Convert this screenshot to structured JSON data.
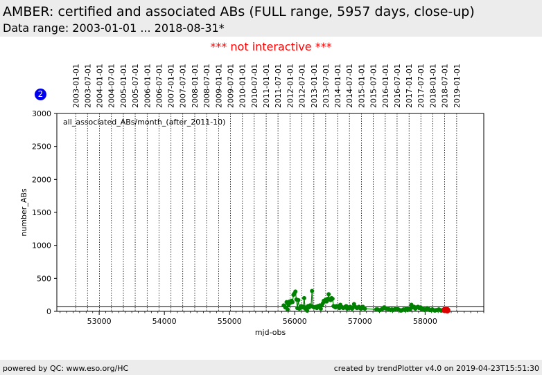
{
  "header": {
    "title": "AMBER: certified and associated ABs (FULL range, 5957 days, close-up)",
    "subtitle": "Data range: 2003-01-01 ... 2018-08-31*"
  },
  "notice": "*** not interactive ***",
  "badge": "2",
  "footer": {
    "left": "powered by QC: www.eso.org/HC",
    "right": "created by trendPlotter v4.0 on 2019-04-23T15:51:30"
  },
  "colors": {
    "series": "#008000",
    "highlight": "#dd0000",
    "notice": "#ff0000",
    "badge": "#0000ee"
  },
  "chart_data": {
    "type": "scatter",
    "xlabel": "mjd-obs",
    "ylabel": "number_ABs",
    "annotation": "all_associated_ABs/month_(after_2011-10)",
    "xlim": [
      52350,
      58900
    ],
    "ylim": [
      0,
      3000
    ],
    "x_ticks": [
      53000,
      54000,
      55000,
      56000,
      57000,
      58000
    ],
    "y_ticks": [
      0,
      500,
      1000,
      1500,
      2000,
      2500,
      3000
    ],
    "date_ticks": [
      {
        "label": "2003-01-01",
        "mjd": 52640
      },
      {
        "label": "2003-07-01",
        "mjd": 52821
      },
      {
        "label": "2004-01-01",
        "mjd": 53005
      },
      {
        "label": "2004-07-01",
        "mjd": 53187
      },
      {
        "label": "2005-01-01",
        "mjd": 53371
      },
      {
        "label": "2005-07-01",
        "mjd": 53552
      },
      {
        "label": "2006-01-01",
        "mjd": 53736
      },
      {
        "label": "2006-07-01",
        "mjd": 53917
      },
      {
        "label": "2007-01-01",
        "mjd": 54101
      },
      {
        "label": "2007-07-01",
        "mjd": 54282
      },
      {
        "label": "2008-01-01",
        "mjd": 54466
      },
      {
        "label": "2008-07-01",
        "mjd": 54648
      },
      {
        "label": "2009-01-01",
        "mjd": 54832
      },
      {
        "label": "2009-07-01",
        "mjd": 55013
      },
      {
        "label": "2010-01-01",
        "mjd": 55197
      },
      {
        "label": "2010-07-01",
        "mjd": 55378
      },
      {
        "label": "2011-01-01",
        "mjd": 55562
      },
      {
        "label": "2011-07-01",
        "mjd": 55743
      },
      {
        "label": "2012-01-01",
        "mjd": 55927
      },
      {
        "label": "2012-07-01",
        "mjd": 56109
      },
      {
        "label": "2013-01-01",
        "mjd": 56293
      },
      {
        "label": "2013-07-01",
        "mjd": 56474
      },
      {
        "label": "2014-01-01",
        "mjd": 56658
      },
      {
        "label": "2014-07-01",
        "mjd": 56839
      },
      {
        "label": "2015-01-01",
        "mjd": 57023
      },
      {
        "label": "2015-07-01",
        "mjd": 57204
      },
      {
        "label": "2016-01-01",
        "mjd": 57388
      },
      {
        "label": "2016-07-01",
        "mjd": 57570
      },
      {
        "label": "2017-01-01",
        "mjd": 57754
      },
      {
        "label": "2017-07-01",
        "mjd": 57935
      },
      {
        "label": "2018-01-01",
        "mjd": 58119
      },
      {
        "label": "2018-07-01",
        "mjd": 58300
      },
      {
        "label": "2019-01-01",
        "mjd": 58484
      }
    ],
    "reference_line": 70,
    "series": [
      {
        "x": [
          55830,
          55855,
          55875,
          55890,
          55905,
          55920,
          55935,
          55950,
          55965,
          55980,
          55995,
          56010,
          56025,
          56040,
          56055,
          56070,
          56085,
          56100,
          56115,
          56130,
          56145,
          56160,
          56175,
          56190,
          56205,
          56220,
          56235,
          56250,
          56265,
          56280,
          56295,
          56310,
          56325,
          56340,
          56355,
          56370,
          56385,
          56400,
          56415,
          56430,
          56445,
          56460,
          56475,
          56490,
          56505,
          56520,
          56535,
          56550,
          56565,
          56580,
          56595,
          56610,
          56625,
          56640,
          56655,
          56670,
          56685,
          56700,
          56715,
          56730,
          56745,
          56760,
          56775,
          56790,
          56805,
          56820,
          56835,
          56850,
          56865,
          56880,
          56895,
          56910,
          56925,
          56940,
          56955,
          56970,
          56985,
          57000,
          57015,
          57030,
          57045,
          57060,
          57075,
          57250,
          57270,
          57290,
          57310,
          57330,
          57350,
          57370,
          57390,
          57410,
          57430,
          57450,
          57470,
          57490,
          57510,
          57530,
          57550,
          57570,
          57590,
          57610,
          57630,
          57650,
          57670,
          57690,
          57710,
          57730,
          57750,
          57770,
          57790,
          57810,
          57830,
          57850,
          57870,
          57890,
          57910,
          57930,
          57950,
          57970,
          57990,
          58010,
          58030,
          58050,
          58070,
          58090,
          58110,
          58130,
          58150,
          58170,
          58190,
          58210,
          58230,
          58250,
          58270,
          58290
        ],
        "y": [
          90,
          60,
          140,
          30,
          100,
          150,
          130,
          160,
          140,
          250,
          270,
          300,
          180,
          50,
          170,
          40,
          60,
          80,
          60,
          70,
          200,
          40,
          60,
          10,
          80,
          60,
          90,
          80,
          310,
          70,
          60,
          60,
          70,
          50,
          80,
          70,
          90,
          40,
          90,
          120,
          160,
          150,
          180,
          150,
          190,
          260,
          180,
          170,
          200,
          190,
          80,
          70,
          60,
          80,
          70,
          80,
          50,
          100,
          70,
          60,
          50,
          60,
          70,
          80,
          40,
          60,
          50,
          70,
          60,
          40,
          60,
          110,
          70,
          60,
          50,
          60,
          70,
          50,
          40,
          60,
          70,
          50,
          40,
          30,
          30,
          20,
          20,
          30,
          40,
          60,
          50,
          40,
          40,
          30,
          20,
          30,
          20,
          30,
          40,
          40,
          30,
          20,
          10,
          20,
          30,
          20,
          40,
          20,
          40,
          30,
          100,
          60,
          70,
          40,
          60,
          70,
          50,
          60,
          30,
          40,
          20,
          30,
          50,
          40,
          20,
          20,
          30,
          20,
          10,
          20,
          20,
          30,
          20,
          10,
          20,
          10
        ],
        "color": "#008000"
      },
      {
        "x": [
          58300,
          58310,
          58320,
          58330,
          58340
        ],
        "y": [
          20,
          25,
          30,
          25,
          15
        ],
        "color": "#dd0000"
      }
    ]
  }
}
